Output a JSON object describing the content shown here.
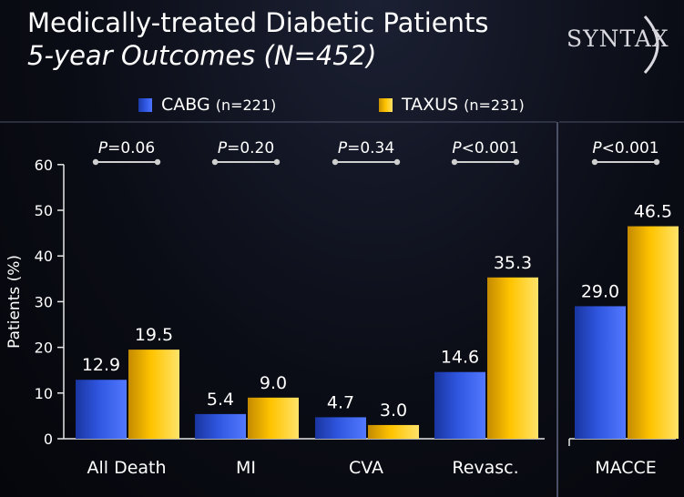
{
  "title": "Medically-treated Diabetic Patients",
  "subtitle": "5-year Outcomes (N=452)",
  "logo": "SYNTAX",
  "colors": {
    "cabg": "#2f56e0",
    "taxus": "#ffc400",
    "axis": "#e6e6e6",
    "divider": "#4a5066",
    "bracket": "#cfcfcf"
  },
  "legend": [
    {
      "name": "CABG",
      "n": "(n=221)"
    },
    {
      "name": "TAXUS",
      "n": "(n=231)"
    }
  ],
  "chart_data": {
    "type": "bar",
    "ylabel": "Patients (%)",
    "ylim": [
      0,
      60
    ],
    "yticks": [
      0,
      10,
      20,
      30,
      40,
      50,
      60
    ],
    "grid": false,
    "legend_position": "top",
    "categories": [
      "All Death",
      "MI",
      "CVA",
      "Revasc.",
      "MACCE"
    ],
    "series": [
      {
        "name": "CABG (n=221)",
        "values": [
          12.9,
          5.4,
          4.7,
          14.6,
          29.0
        ],
        "labels": [
          "12.9",
          "5.4",
          "4.7",
          "14.6",
          "29.0"
        ]
      },
      {
        "name": "TAXUS (n=231)",
        "values": [
          19.5,
          9.0,
          3.0,
          35.3,
          46.5
        ],
        "labels": [
          "19.5",
          "9.0",
          "3.0",
          "35.3",
          "46.5"
        ]
      }
    ],
    "pvalues": [
      "P=0.06",
      "P=0.20",
      "P=0.34",
      "P<0.001",
      "P<0.001"
    ]
  }
}
